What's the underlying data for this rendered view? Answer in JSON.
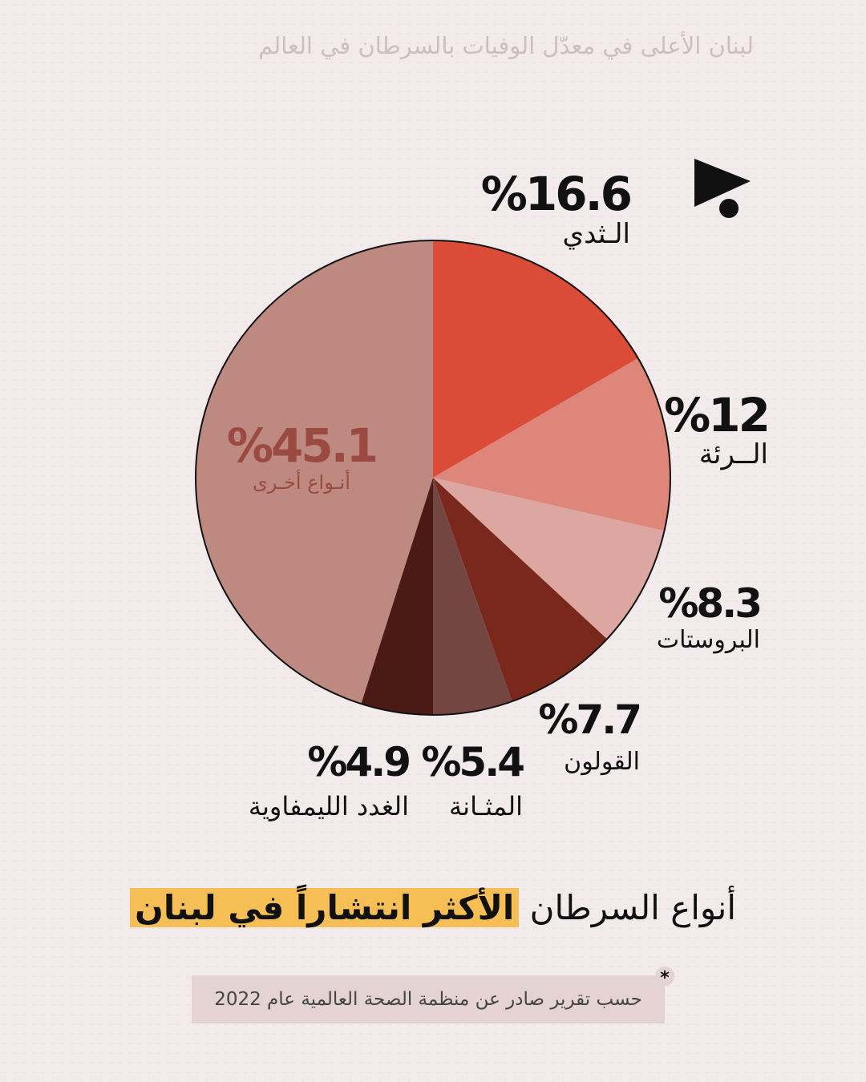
{
  "top_title": "لبنان الأعلى في معدّل الوفيات بالسرطان في العالم",
  "logo_icon": "flag-dot-logo-icon",
  "headline": {
    "plain": "أنواع السرطان",
    "highlight": "الأكثر انتشاراً في لبنان"
  },
  "source_note": "حسب تقرير صادر عن منظمة الصحة العالمية عام 2022",
  "source_marker": "*",
  "colors": {
    "background": "#f3eaeb",
    "highlight": "#f6bf55",
    "source_box": "#e4d3d2"
  },
  "chart_data": {
    "type": "pie",
    "slices": [
      {
        "label": "الـثدي",
        "value": 16.6,
        "value_text": "%16.6",
        "color": "#db4c38"
      },
      {
        "label": "الــرئة",
        "value": 12,
        "value_text": "%12",
        "color": "#de867a"
      },
      {
        "label": "البروستات",
        "value": 8.3,
        "value_text": "%8.3",
        "color": "#dca6a1"
      },
      {
        "label": "القولون",
        "value": 7.7,
        "value_text": "%7.7",
        "color": "#7a281b"
      },
      {
        "label": "المثـانة",
        "value": 5.4,
        "value_text": "%5.4",
        "color": "#744641"
      },
      {
        "label": "الغدد الليمفاوية",
        "value": 4.9,
        "value_text": "%4.9",
        "color": "#4c1a15"
      },
      {
        "label": "أنـواع أخـرى",
        "value": 45.1,
        "value_text": "%45.1",
        "color": "#bd8980"
      }
    ]
  }
}
